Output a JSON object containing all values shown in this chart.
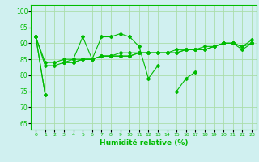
{
  "x": [
    0,
    1,
    2,
    3,
    4,
    5,
    6,
    7,
    8,
    9,
    10,
    11,
    12,
    13,
    14,
    15,
    16,
    17,
    18,
    19,
    20,
    21,
    22,
    23
  ],
  "line1": [
    92,
    74,
    null,
    84,
    85,
    92,
    85,
    92,
    92,
    93,
    92,
    89,
    79,
    83,
    null,
    75,
    79,
    81,
    null,
    null,
    90,
    90,
    88,
    90
  ],
  "line2": [
    92,
    74,
    null,
    84,
    84,
    85,
    85,
    86,
    86,
    86,
    86,
    87,
    87,
    87,
    87,
    87,
    88,
    88,
    88,
    89,
    90,
    90,
    89,
    90
  ],
  "line3": [
    92,
    83,
    83,
    84,
    84,
    85,
    85,
    86,
    86,
    86,
    86,
    87,
    87,
    87,
    87,
    87,
    88,
    88,
    89,
    89,
    90,
    90,
    89,
    90
  ],
  "line4": [
    92,
    84,
    84,
    85,
    85,
    85,
    85,
    86,
    86,
    87,
    87,
    87,
    87,
    87,
    87,
    88,
    88,
    88,
    88,
    89,
    90,
    90,
    89,
    91
  ],
  "color": "#00bb00",
  "bg_color": "#d0f0f0",
  "grid_color": "#aaddaa",
  "xlabel": "Humidité relative (%)",
  "ylim": [
    63,
    102
  ],
  "xlim": [
    -0.5,
    23.5
  ],
  "yticks": [
    65,
    70,
    75,
    80,
    85,
    90,
    95,
    100
  ],
  "xticks": [
    0,
    1,
    2,
    3,
    4,
    5,
    6,
    7,
    8,
    9,
    10,
    11,
    12,
    13,
    14,
    15,
    16,
    17,
    18,
    19,
    20,
    21,
    22,
    23
  ],
  "xtick_labels": [
    "0",
    "1",
    "2",
    "3",
    "4",
    "5",
    "6",
    "7",
    "8",
    "9",
    "10",
    "11",
    "12",
    "13",
    "14",
    "15",
    "16",
    "17",
    "18",
    "19",
    "20",
    "21",
    "22",
    "23"
  ]
}
